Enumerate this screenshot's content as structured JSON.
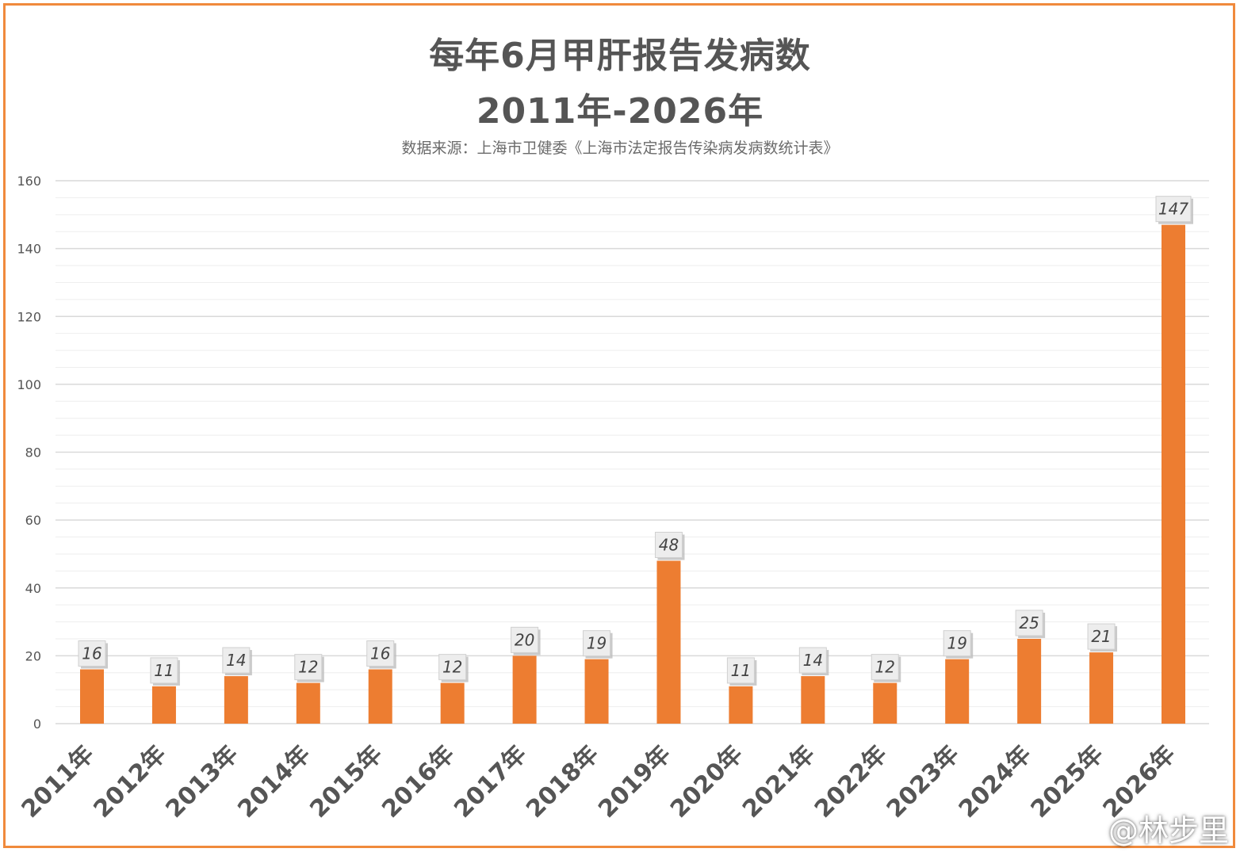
{
  "chart_data": {
    "type": "bar",
    "title": "每年6月甲肝报告发病数",
    "subtitle": "2011年-2026年",
    "source": "数据来源：上海市卫健委《上海市法定报告传染病发病数统计表》",
    "categories": [
      "2011年",
      "2012年",
      "2013年",
      "2014年",
      "2015年",
      "2016年",
      "2017年",
      "2018年",
      "2019年",
      "2020年",
      "2021年",
      "2022年",
      "2023年",
      "2024年",
      "2025年",
      "2026年"
    ],
    "values": [
      16,
      11,
      14,
      12,
      16,
      12,
      20,
      19,
      48,
      11,
      14,
      12,
      19,
      25,
      21,
      147
    ],
    "ylim": [
      0,
      160
    ],
    "yticks": [
      0,
      20,
      40,
      60,
      80,
      100,
      120,
      140,
      160
    ],
    "xlabel": "",
    "ylabel": "",
    "grid": true,
    "legend": "none",
    "bar_color": "#ed7d31",
    "frame_color": "#f08a3c"
  },
  "watermark": {
    "text": "@林步里",
    "icon": "weibo-icon"
  }
}
